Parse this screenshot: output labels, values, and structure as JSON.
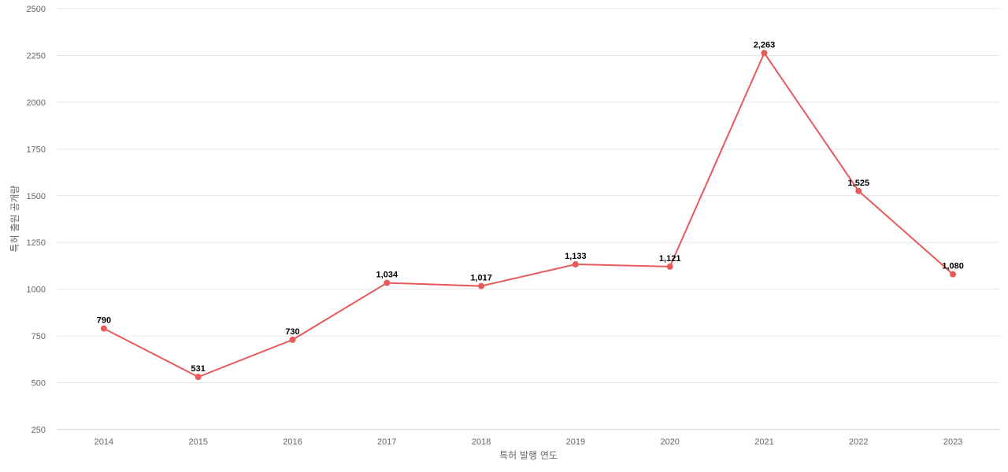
{
  "chart_data": {
    "type": "line",
    "categories": [
      "2014",
      "2015",
      "2016",
      "2017",
      "2018",
      "2019",
      "2020",
      "2021",
      "2022",
      "2023"
    ],
    "series": [
      {
        "values": [
          790,
          531,
          730,
          1034,
          1017,
          1133,
          1121,
          2263,
          1525,
          1080
        ],
        "labels": [
          "790",
          "531",
          "730",
          "1,034",
          "1,017",
          "1,133",
          "1,121",
          "2,263",
          "1,525",
          "1,080"
        ]
      }
    ],
    "title": "",
    "xlabel": "특허 발행 연도",
    "ylabel": "특허 출원 공개량",
    "ylim": [
      250,
      2500
    ],
    "yticks": [
      "250",
      "500",
      "750",
      "1000",
      "1250",
      "1500",
      "1750",
      "2000",
      "2250",
      "2500"
    ],
    "grid": true,
    "legend": "none",
    "line_color": "#e85a5a"
  }
}
